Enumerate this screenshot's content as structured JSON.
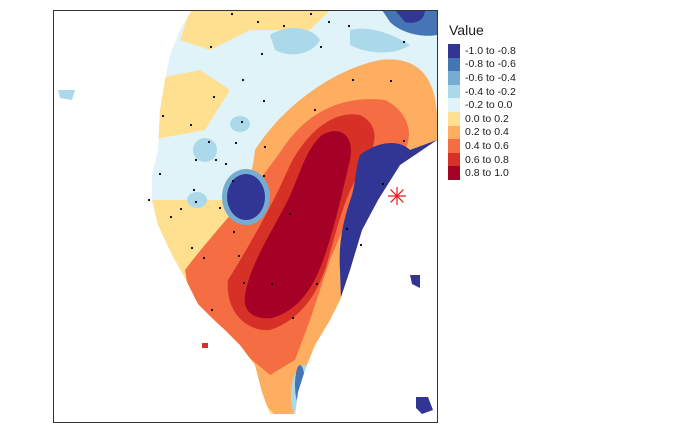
{
  "legend": {
    "title": "Value",
    "items": [
      {
        "label": "-1.0 to -0.8",
        "color": "#313695"
      },
      {
        "label": "-0.8 to -0.6",
        "color": "#4575b4"
      },
      {
        "label": "-0.6 to -0.4",
        "color": "#74add1"
      },
      {
        "label": "-0.4 to -0.2",
        "color": "#abd9e9"
      },
      {
        "label": "-0.2 to 0.0",
        "color": "#e0f3f8"
      },
      {
        "label": "0.0 to 0.2",
        "color": "#fee090"
      },
      {
        "label": "0.2 to 0.4",
        "color": "#fdae61"
      },
      {
        "label": "0.4 to 0.6",
        "color": "#f46d43"
      },
      {
        "label": "0.6 to 0.8",
        "color": "#d73027"
      },
      {
        "label": "0.8 to 1.0",
        "color": "#a50026"
      }
    ]
  },
  "marker": {
    "icon": "star-asterisk-icon",
    "color": "#e31a1c"
  },
  "station_color": "#000000"
}
